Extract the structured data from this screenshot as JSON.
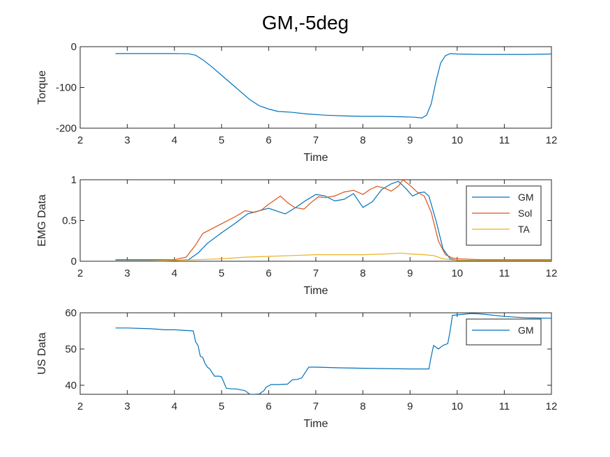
{
  "figure": {
    "title": "GM,-5deg"
  },
  "chart_data": [
    {
      "type": "line",
      "xlabel": "Time",
      "ylabel": "Torque",
      "xlim": [
        2,
        12
      ],
      "ylim": [
        -200,
        0
      ],
      "xticks": [
        2,
        3,
        4,
        5,
        6,
        7,
        8,
        9,
        10,
        11,
        12
      ],
      "yticks": [
        -200,
        -100,
        0
      ],
      "grid": false,
      "legend": null,
      "series": [
        {
          "color": "#0072BD",
          "x": [
            2.75,
            3.0,
            3.5,
            4.0,
            4.3,
            4.45,
            4.6,
            4.8,
            5.0,
            5.3,
            5.6,
            5.8,
            6.0,
            6.2,
            6.5,
            6.8,
            7.2,
            7.6,
            8.0,
            8.4,
            8.8,
            9.1,
            9.25,
            9.35,
            9.45,
            9.55,
            9.65,
            9.75,
            9.85,
            10.0,
            10.5,
            11.0,
            11.5,
            12.0
          ],
          "y": [
            -17,
            -17,
            -17,
            -17,
            -17.5,
            -21,
            -32,
            -50,
            -70,
            -100,
            -130,
            -145,
            -153,
            -159,
            -161,
            -165,
            -168,
            -170,
            -171,
            -171,
            -172,
            -173,
            -175,
            -168,
            -140,
            -85,
            -40,
            -22,
            -17,
            -18,
            -19,
            -19,
            -19,
            -18
          ]
        }
      ]
    },
    {
      "type": "line",
      "xlabel": "Time",
      "ylabel": "EMG Data",
      "xlim": [
        2,
        12
      ],
      "ylim": [
        0,
        1
      ],
      "xticks": [
        2,
        3,
        4,
        5,
        6,
        7,
        8,
        9,
        10,
        11,
        12
      ],
      "yticks": [
        0,
        0.5,
        1
      ],
      "grid": false,
      "legend": "top-right",
      "series": [
        {
          "name": "GM",
          "color": "#0072BD",
          "x": [
            2.75,
            3.5,
            4.0,
            4.3,
            4.5,
            4.7,
            5.0,
            5.3,
            5.55,
            5.8,
            6.0,
            6.2,
            6.35,
            6.55,
            6.8,
            7.0,
            7.2,
            7.4,
            7.6,
            7.8,
            8.0,
            8.2,
            8.4,
            8.6,
            8.75,
            8.9,
            9.05,
            9.2,
            9.3,
            9.4,
            9.55,
            9.7,
            9.85,
            10.0,
            10.5,
            11.0,
            12.0
          ],
          "y": [
            0.01,
            0.01,
            0.01,
            0.02,
            0.1,
            0.22,
            0.35,
            0.47,
            0.58,
            0.62,
            0.65,
            0.61,
            0.58,
            0.65,
            0.75,
            0.82,
            0.8,
            0.74,
            0.76,
            0.83,
            0.66,
            0.73,
            0.88,
            0.95,
            0.98,
            0.9,
            0.8,
            0.84,
            0.85,
            0.8,
            0.5,
            0.15,
            0.03,
            0.01,
            0.01,
            0.01,
            0.01
          ]
        },
        {
          "name": "Sol",
          "color": "#D95319",
          "x": [
            2.75,
            3.5,
            4.0,
            4.25,
            4.45,
            4.6,
            4.8,
            5.0,
            5.3,
            5.5,
            5.7,
            5.85,
            6.0,
            6.15,
            6.25,
            6.4,
            6.55,
            6.75,
            6.9,
            7.05,
            7.2,
            7.4,
            7.6,
            7.8,
            8.0,
            8.15,
            8.3,
            8.45,
            8.6,
            8.75,
            8.85,
            9.0,
            9.15,
            9.3,
            9.45,
            9.6,
            9.75,
            9.9,
            10.0,
            10.5,
            11.0,
            12.0
          ],
          "y": [
            0.02,
            0.02,
            0.02,
            0.05,
            0.2,
            0.34,
            0.4,
            0.46,
            0.55,
            0.62,
            0.6,
            0.63,
            0.7,
            0.76,
            0.8,
            0.72,
            0.66,
            0.64,
            0.72,
            0.79,
            0.78,
            0.8,
            0.85,
            0.87,
            0.82,
            0.88,
            0.92,
            0.9,
            0.86,
            0.92,
            1.0,
            0.93,
            0.85,
            0.8,
            0.6,
            0.25,
            0.08,
            0.04,
            0.03,
            0.02,
            0.02,
            0.02
          ]
        },
        {
          "name": "TA",
          "color": "#EDB120",
          "x": [
            2.75,
            3.5,
            4.0,
            4.5,
            5.0,
            5.5,
            6.0,
            6.5,
            7.0,
            7.5,
            8.0,
            8.5,
            8.8,
            9.0,
            9.3,
            9.5,
            9.7,
            10.0,
            10.5,
            11.0,
            12.0
          ],
          "y": [
            0.0,
            0.0,
            0.01,
            0.02,
            0.03,
            0.05,
            0.06,
            0.07,
            0.08,
            0.08,
            0.08,
            0.09,
            0.1,
            0.09,
            0.08,
            0.07,
            0.03,
            0.01,
            0.01,
            0.01,
            0.01
          ]
        }
      ]
    },
    {
      "type": "line",
      "xlabel": "Time",
      "ylabel": "US Data",
      "xlim": [
        2,
        12
      ],
      "ylim": [
        37.5,
        60
      ],
      "xticks": [
        2,
        3,
        4,
        5,
        6,
        7,
        8,
        9,
        10,
        11,
        12
      ],
      "yticks": [
        40,
        50,
        60
      ],
      "grid": false,
      "legend": "top-right",
      "series": [
        {
          "name": "GM",
          "color": "#0072BD",
          "x": [
            2.75,
            3.0,
            3.5,
            3.8,
            4.0,
            4.4,
            4.45,
            4.5,
            4.55,
            4.6,
            4.65,
            4.7,
            4.75,
            4.85,
            4.95,
            5.0,
            5.1,
            5.2,
            5.3,
            5.5,
            5.6,
            5.7,
            5.8,
            5.9,
            5.95,
            6.05,
            6.2,
            6.4,
            6.5,
            6.6,
            6.7,
            6.75,
            6.85,
            7.0,
            7.5,
            8.0,
            8.5,
            9.0,
            9.4,
            9.45,
            9.5,
            9.55,
            9.6,
            9.7,
            9.8,
            9.85,
            9.9,
            10.3,
            10.5,
            11.0,
            11.5,
            12.0
          ],
          "y": [
            55.8,
            55.8,
            55.6,
            55.3,
            55.3,
            55.0,
            52.0,
            51.0,
            48.0,
            47.7,
            46.0,
            45.0,
            44.5,
            42.5,
            42.5,
            42.3,
            39.2,
            39.0,
            39.0,
            38.5,
            37.5,
            37.5,
            37.6,
            38.5,
            39.5,
            40.2,
            40.2,
            40.3,
            41.5,
            41.6,
            42.0,
            43.0,
            45.0,
            45.0,
            44.8,
            44.7,
            44.6,
            44.5,
            44.5,
            48.0,
            51.0,
            50.5,
            50.0,
            51.0,
            51.5,
            55.0,
            59.3,
            59.8,
            59.7,
            59.0,
            58.6,
            58.5
          ]
        }
      ]
    }
  ]
}
